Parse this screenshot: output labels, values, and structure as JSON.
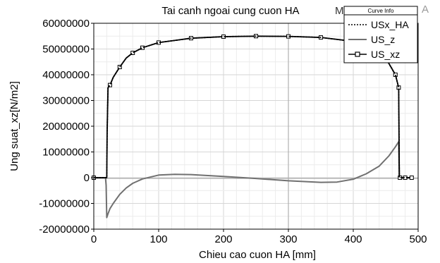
{
  "chart_data": {
    "type": "line",
    "title": "Tai canh ngoai cung cuon HA",
    "title_right_fragment": "M",
    "corner_badge": "A",
    "xlabel": "Chieu cao cuon HA [mm]",
    "ylabel": "Ung suat_xz[N/m2]",
    "xlim": [
      0,
      500
    ],
    "ylim": [
      -20000000,
      60000000
    ],
    "xticks": [
      0,
      100,
      200,
      300,
      400,
      500
    ],
    "yticks": [
      -20000000,
      -10000000,
      0,
      10000000,
      20000000,
      30000000,
      40000000,
      50000000,
      60000000
    ],
    "xtick_labels": [
      "0",
      "100",
      "200",
      "300",
      "400",
      "500"
    ],
    "ytick_labels": [
      "-20000000",
      "-10000000",
      "0",
      "10000000",
      "20000000",
      "30000000",
      "40000000",
      "50000000",
      "60000000"
    ],
    "grid": true,
    "legend": {
      "title": "Curve Info",
      "position": "top-right",
      "entries": [
        "USx_HA",
        "US_z",
        "US_xz"
      ]
    },
    "series": [
      {
        "name": "USx_HA",
        "style": "dotted",
        "color": "#000000",
        "x": [
          0,
          20,
          20.5,
          22,
          25,
          30,
          40,
          50,
          60,
          75,
          100,
          150,
          200,
          250,
          300,
          350,
          400,
          430,
          450,
          465,
          470,
          471,
          472,
          480,
          490
        ],
        "y": [
          0,
          0,
          17000000,
          35000000,
          36000000,
          39000000,
          43000000,
          46500000,
          48500000,
          50500000,
          52500000,
          54200000,
          54800000,
          55000000,
          54900000,
          54500000,
          53000000,
          50500000,
          46500000,
          40000000,
          35000000,
          0,
          0,
          0,
          0
        ]
      },
      {
        "name": "US_z",
        "style": "solid",
        "color": "#707070",
        "x": [
          0,
          18,
          19,
          20,
          22,
          25,
          30,
          40,
          50,
          60,
          75,
          100,
          125,
          150,
          200,
          250,
          300,
          350,
          375,
          400,
          420,
          440,
          455,
          465,
          470,
          471,
          472,
          480,
          490
        ],
        "y": [
          0,
          0,
          -3000000,
          -15500000,
          -14000000,
          -12000000,
          -10000000,
          -6500000,
          -4000000,
          -2200000,
          -500000,
          1000000,
          1300000,
          1200000,
          500000,
          -300000,
          -1200000,
          -1800000,
          -1700000,
          -600000,
          1500000,
          4500000,
          8500000,
          12000000,
          14000000,
          1000000,
          0,
          0,
          0
        ]
      },
      {
        "name": "US_xz",
        "style": "solid-square",
        "color": "#000000",
        "x": [
          0,
          20,
          20.5,
          22,
          25,
          30,
          40,
          50,
          60,
          75,
          100,
          150,
          200,
          250,
          300,
          350,
          400,
          430,
          450,
          465,
          470,
          471,
          472,
          480,
          490
        ],
        "y": [
          0,
          0,
          17000000,
          35000000,
          36000000,
          39000000,
          43000000,
          46500000,
          48500000,
          50500000,
          52500000,
          54200000,
          54800000,
          55000000,
          54900000,
          54500000,
          53000000,
          50500000,
          46500000,
          40000000,
          35000000,
          0,
          0,
          0,
          0
        ]
      }
    ]
  }
}
